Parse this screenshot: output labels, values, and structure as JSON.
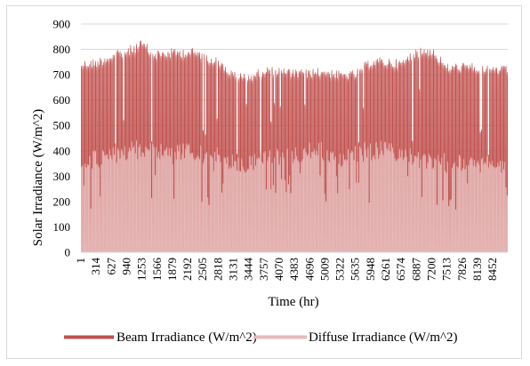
{
  "chart_data": {
    "type": "area",
    "xlabel": "Time (hr)",
    "ylabel": "Solar Irradiance (W/m^2)",
    "ylim": [
      0,
      900
    ],
    "yticks": [
      0,
      100,
      200,
      300,
      400,
      500,
      600,
      700,
      800,
      900
    ],
    "xlim": [
      1,
      8760
    ],
    "xticks": [
      1,
      314,
      627,
      940,
      1253,
      1566,
      1879,
      2192,
      2505,
      2818,
      3131,
      3444,
      3757,
      4070,
      4383,
      4696,
      5009,
      5322,
      5635,
      5948,
      6261,
      6574,
      6887,
      7200,
      7513,
      7826,
      8139,
      8452
    ],
    "grid": "horizontal",
    "legend_position": "bottom",
    "series": [
      {
        "name": "Beam Irradiance (W/m^2)",
        "color": "#c0504d",
        "approx_envelope": {
          "x": [
            1,
            300,
            600,
            940,
            1250,
            1500,
            1880,
            2200,
            2500,
            2800,
            3130,
            3450,
            3760,
            4070,
            4380,
            4700,
            5010,
            5320,
            5640,
            5950,
            6260,
            6570,
            6890,
            7200,
            7510,
            7830,
            8140,
            8450,
            8760
          ],
          "y": [
            760,
            765,
            790,
            810,
            840,
            800,
            805,
            810,
            800,
            770,
            715,
            705,
            735,
            735,
            720,
            725,
            730,
            715,
            720,
            770,
            770,
            760,
            810,
            815,
            745,
            750,
            745,
            740,
            735
          ]
        }
      },
      {
        "name": "Diffuse Irradiance (W/m^2)",
        "color": "#e6b9b8",
        "approx_envelope": {
          "x": [
            1,
            300,
            600,
            940,
            1250,
            1500,
            1880,
            2200,
            2500,
            2800,
            3130,
            3450,
            3760,
            4070,
            4380,
            4700,
            5010,
            5320,
            5640,
            5950,
            6260,
            6570,
            6890,
            7200,
            7510,
            7830,
            8140,
            8450,
            8760
          ],
          "y": [
            395,
            405,
            410,
            440,
            450,
            445,
            420,
            440,
            445,
            425,
            385,
            380,
            410,
            420,
            420,
            440,
            435,
            410,
            430,
            440,
            440,
            430,
            400,
            390,
            395,
            390,
            375,
            385,
            380
          ]
        }
      }
    ]
  }
}
